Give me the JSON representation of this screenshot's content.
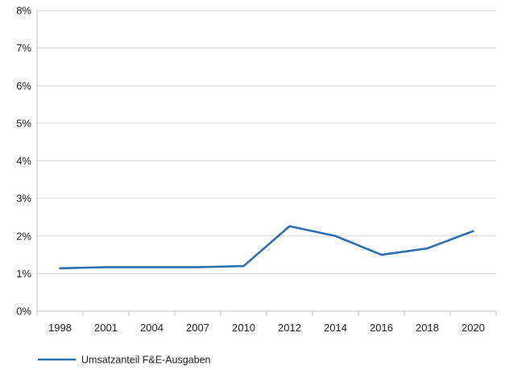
{
  "chart_data": {
    "type": "line",
    "categories": [
      "1998",
      "2001",
      "2004",
      "2007",
      "2010",
      "2012",
      "2014",
      "2016",
      "2018",
      "2020"
    ],
    "series": [
      {
        "name": "Umsatzanteil F&E-Ausgaben",
        "values": [
          1.14,
          1.17,
          1.17,
          1.17,
          1.2,
          2.26,
          2.0,
          1.5,
          1.67,
          2.13
        ]
      }
    ],
    "y_tick_labels": [
      "0%",
      "1%",
      "2%",
      "3%",
      "4%",
      "5%",
      "6%",
      "7%",
      "8%"
    ],
    "ylim": [
      0,
      8
    ],
    "title": "",
    "xlabel": "",
    "ylabel": "",
    "grid": "horizontal",
    "legend_position": "bottom-left",
    "colors": {
      "series_line": "#2e6fae",
      "grid": "#d9d9d9",
      "axis": "#bfbfbf",
      "text": "#222222"
    }
  }
}
